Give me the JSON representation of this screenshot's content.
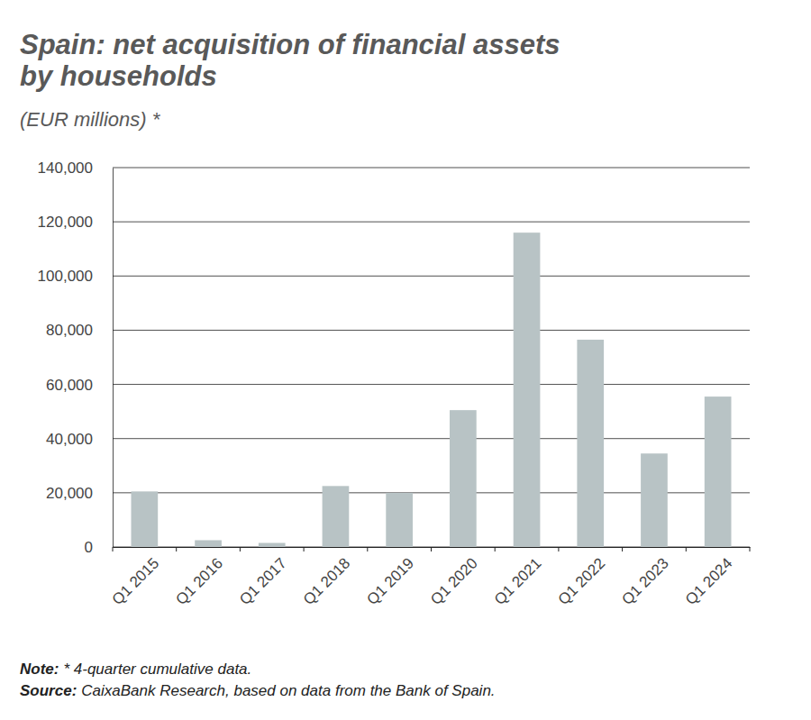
{
  "chart_data": {
    "type": "bar",
    "title": [
      "Spain: net acquisition of financial assets",
      "by households"
    ],
    "subtitle": "(EUR millions) *",
    "categories": [
      "Q1 2015",
      "Q1 2016",
      "Q1 2017",
      "Q1 2018",
      "Q1 2019",
      "Q1 2020",
      "Q1 2021",
      "Q1 2022",
      "Q1 2023",
      "Q1 2024"
    ],
    "values": [
      20500,
      2500,
      1500,
      22500,
      20000,
      50500,
      116000,
      76500,
      34500,
      55500
    ],
    "color": "#b8c3c5",
    "ylim": [
      0,
      140000
    ],
    "yticks": [
      0,
      {
        "value": 20000,
        "label": "20,000"
      },
      {
        "value": 40000,
        "label": "40,000"
      },
      {
        "value": 60000,
        "label": "60,000"
      },
      {
        "value": 80000,
        "label": "80,000"
      },
      {
        "value": 100000,
        "label": "100,000"
      },
      {
        "value": 120000,
        "label": "120,000"
      },
      {
        "value": 140000,
        "label": "140,000"
      }
    ],
    "grid": true,
    "notes": [
      {
        "label": "Note:",
        "text": "* 4-quarter cumulative data."
      },
      {
        "label": "Source:",
        "text": "CaixaBank Research, based on data from the Bank of Spain."
      }
    ]
  }
}
